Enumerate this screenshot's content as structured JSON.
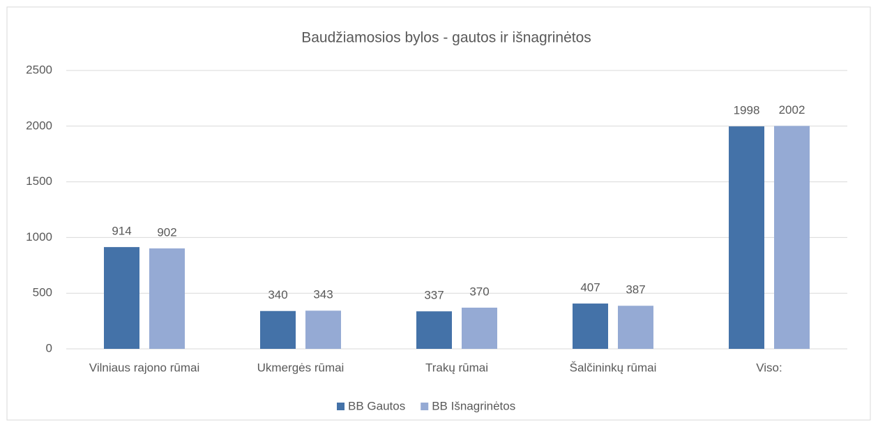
{
  "chart_data": {
    "type": "bar",
    "title": "Baudžiamosios bylos - gautos ir išnagrinėtos",
    "categories": [
      "Vilniaus rajono rūmai",
      "Ukmergės rūmai",
      "Trakų rūmai",
      "Šalčininkų rūmai",
      "Viso:"
    ],
    "series": [
      {
        "name": "BB Gautos",
        "color": "#4472a8",
        "values": [
          914,
          340,
          337,
          407,
          1998
        ]
      },
      {
        "name": "BB Išnagrinėtos",
        "color": "#95aad4",
        "values": [
          902,
          343,
          370,
          387,
          2002
        ]
      }
    ],
    "ylim": [
      0,
      2500
    ],
    "yticks": [
      0,
      500,
      1000,
      1500,
      2000,
      2500
    ],
    "grid": true,
    "legend": "bottom"
  }
}
